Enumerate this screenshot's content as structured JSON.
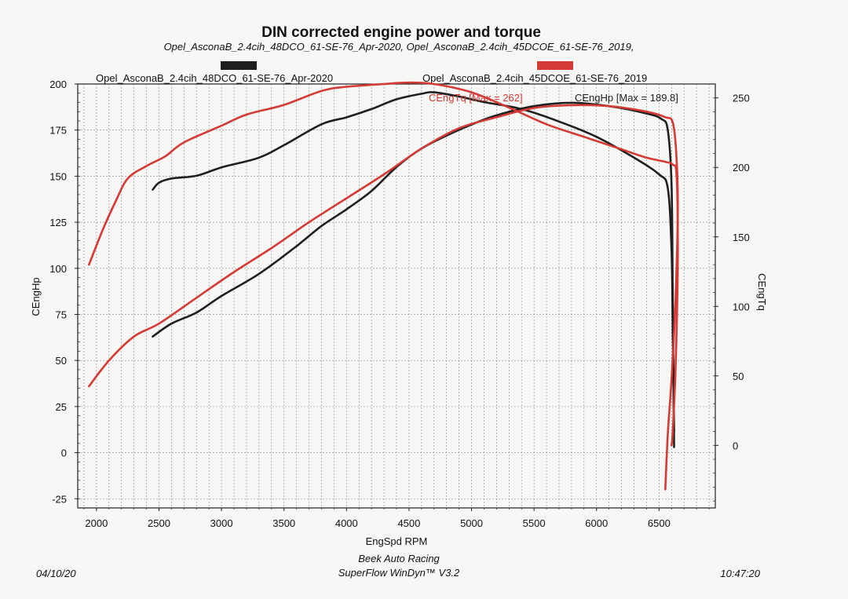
{
  "chart_data": {
    "type": "line",
    "title": "DIN corrected engine power and torque",
    "subtitle": "Opel_AsconaB_2.4cih_48DCO_61-SE-76_Apr-2020, Opel_AsconaB_2.4cih_45DCOE_61-SE-76_2019,",
    "xlabel": "EngSpd RPM",
    "ylabel": "CEngHp",
    "y2label": "CEngTq",
    "xlim": [
      1850,
      6950
    ],
    "ylim": [
      -30,
      200
    ],
    "y2lim": [
      -45,
      260
    ],
    "xticks": [
      2000,
      2500,
      3000,
      3500,
      4000,
      4500,
      5000,
      5500,
      6000,
      6500
    ],
    "yticks": [
      -25,
      0,
      25,
      50,
      75,
      100,
      125,
      150,
      175,
      200
    ],
    "y2ticks": [
      0,
      50,
      100,
      150,
      200,
      250
    ],
    "grid": true,
    "legend_position": "top",
    "legend": [
      {
        "label": "Opel_AsconaB_2.4cih_48DCO_61-SE-76_Apr-2020",
        "color": "#1f1f1f"
      },
      {
        "label": "Opel_AsconaB_2.4cih_45DCOE_61-SE-76_2019",
        "color": "#d43a36"
      }
    ],
    "annotations": [
      {
        "text": "CEngTq [Max = 262]",
        "color": "#d43a36"
      },
      {
        "text": "CEngHp [Max = 189.8]",
        "color": "#1f1f1f"
      }
    ],
    "series": [
      {
        "color": "#1f1f1f",
        "axis": "left",
        "points": [
          [
            2450,
            63
          ],
          [
            2600,
            70
          ],
          [
            2800,
            76
          ],
          [
            3000,
            85
          ],
          [
            3300,
            97
          ],
          [
            3600,
            112
          ],
          [
            3800,
            123
          ],
          [
            4000,
            132
          ],
          [
            4200,
            142
          ],
          [
            4400,
            155
          ],
          [
            4600,
            165
          ],
          [
            4800,
            172
          ],
          [
            5000,
            178
          ],
          [
            5200,
            183
          ],
          [
            5500,
            188
          ],
          [
            5800,
            189.8
          ],
          [
            6100,
            188
          ],
          [
            6400,
            184
          ],
          [
            6520,
            181
          ],
          [
            6570,
            175
          ],
          [
            6600,
            145
          ],
          [
            6610,
            80
          ],
          [
            6620,
            3
          ]
        ]
      },
      {
        "color": "#1f1f1f",
        "axis": "right",
        "points": [
          [
            2450,
            184
          ],
          [
            2500,
            189
          ],
          [
            2600,
            192
          ],
          [
            2800,
            194
          ],
          [
            3000,
            200
          ],
          [
            3300,
            207
          ],
          [
            3500,
            216
          ],
          [
            3800,
            231
          ],
          [
            4000,
            236
          ],
          [
            4200,
            242
          ],
          [
            4400,
            249
          ],
          [
            4600,
            253
          ],
          [
            4700,
            254
          ],
          [
            4900,
            251
          ],
          [
            5100,
            247
          ],
          [
            5400,
            242
          ],
          [
            5700,
            233
          ],
          [
            6000,
            222
          ],
          [
            6300,
            207
          ],
          [
            6500,
            195
          ],
          [
            6570,
            185
          ],
          [
            6600,
            140
          ],
          [
            6610,
            80
          ],
          [
            6620,
            10
          ]
        ]
      },
      {
        "color": "#d43a36",
        "axis": "left",
        "points": [
          [
            1940,
            36
          ],
          [
            2100,
            50
          ],
          [
            2300,
            63
          ],
          [
            2500,
            70
          ],
          [
            2800,
            84
          ],
          [
            3100,
            98
          ],
          [
            3400,
            111
          ],
          [
            3700,
            125
          ],
          [
            4000,
            138
          ],
          [
            4300,
            151
          ],
          [
            4600,
            165
          ],
          [
            4900,
            176
          ],
          [
            5200,
            182
          ],
          [
            5500,
            187
          ],
          [
            5800,
            188.5
          ],
          [
            6100,
            188
          ],
          [
            6400,
            185
          ],
          [
            6550,
            182
          ],
          [
            6610,
            179
          ],
          [
            6640,
            160
          ],
          [
            6650,
            130
          ],
          [
            6630,
            80
          ],
          [
            6600,
            40
          ],
          [
            6570,
            10
          ],
          [
            6550,
            -20
          ]
        ]
      },
      {
        "color": "#d43a36",
        "axis": "right",
        "points": [
          [
            1940,
            130
          ],
          [
            2050,
            155
          ],
          [
            2150,
            175
          ],
          [
            2250,
            192
          ],
          [
            2400,
            201
          ],
          [
            2550,
            208
          ],
          [
            2700,
            218
          ],
          [
            3000,
            230
          ],
          [
            3200,
            238
          ],
          [
            3500,
            245
          ],
          [
            3800,
            255
          ],
          [
            4000,
            258
          ],
          [
            4300,
            260
          ],
          [
            4500,
            261
          ],
          [
            4700,
            260
          ],
          [
            5000,
            254
          ],
          [
            5300,
            243
          ],
          [
            5600,
            231
          ],
          [
            5900,
            222
          ],
          [
            6200,
            213
          ],
          [
            6400,
            207
          ],
          [
            6550,
            204
          ],
          [
            6610,
            202
          ],
          [
            6640,
            195
          ],
          [
            6650,
            150
          ],
          [
            6645,
            100
          ],
          [
            6630,
            50
          ],
          [
            6610,
            10
          ],
          [
            6600,
            0
          ]
        ]
      }
    ]
  },
  "footer": {
    "date": "04/10/20",
    "line1": "Beek Auto Racing",
    "line2": "SuperFlow WinDyn™ V3.2",
    "time": "10:47:20"
  }
}
